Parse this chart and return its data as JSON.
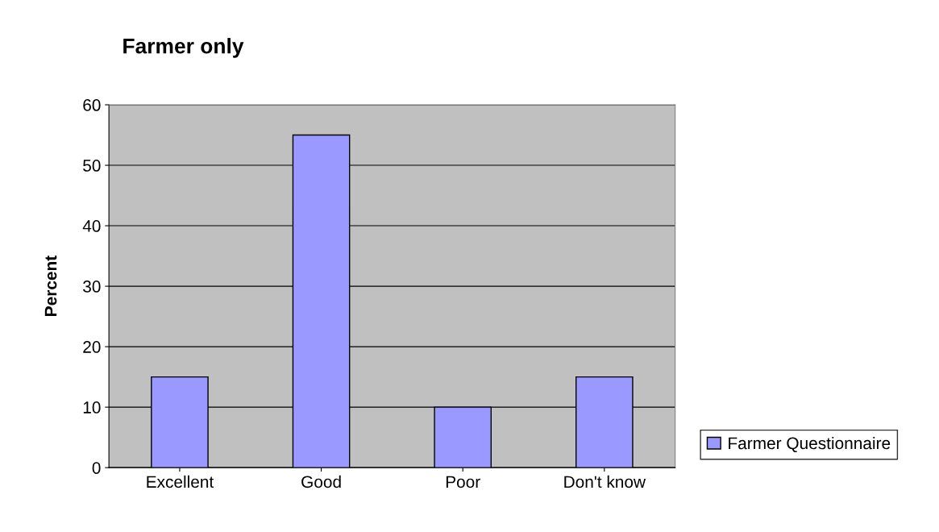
{
  "chart_data": {
    "type": "bar",
    "title": "Farmer only",
    "ylabel": "Percent",
    "categories": [
      "Excellent",
      "Good",
      "Poor",
      "Don't know"
    ],
    "series": [
      {
        "name": "Farmer Questionnaire",
        "color": "#9999ff",
        "values": [
          15,
          55,
          10,
          15
        ]
      }
    ],
    "ylim": [
      0,
      60
    ],
    "yticks": [
      0,
      10,
      20,
      30,
      40,
      50,
      60
    ],
    "grid": "y",
    "legend": "right"
  }
}
